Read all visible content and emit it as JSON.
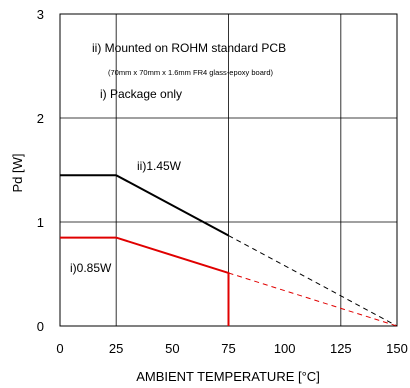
{
  "chart_data": {
    "type": "line",
    "xlabel": "AMBIENT TEMPERATURE [°C]",
    "ylabel": "Pd [W]",
    "xlim": [
      0,
      150
    ],
    "ylim": [
      0,
      3
    ],
    "xticks": [
      0,
      25,
      50,
      75,
      100,
      125,
      150
    ],
    "yticks": [
      0,
      1,
      2,
      3
    ],
    "x_tick_labels": [
      "0",
      "25",
      "50",
      "75",
      "100",
      "125",
      "150"
    ],
    "y_tick_labels": [
      "0",
      "1",
      "2",
      "3"
    ],
    "grid": true,
    "series": [
      {
        "color": "#000000",
        "solid": [
          [
            0,
            1.45
          ],
          [
            25,
            1.45
          ],
          [
            75,
            0.87
          ]
        ],
        "dashed": [
          [
            75,
            0.87
          ],
          [
            150,
            0
          ]
        ],
        "label": "ii)1.45W"
      },
      {
        "color": "#e00000",
        "solid": [
          [
            0,
            0.85
          ],
          [
            25,
            0.85
          ],
          [
            75,
            0.51
          ],
          [
            75,
            0
          ]
        ],
        "dashed": [
          [
            75,
            0.51
          ],
          [
            150,
            0
          ]
        ],
        "label": "i)0.85W"
      }
    ],
    "legend_text": [
      "ii) Mounted on ROHM standard PCB",
      "(70mm x 70mm x 1.6mm FR4 glass-epoxy board)",
      "i) Package only"
    ]
  }
}
